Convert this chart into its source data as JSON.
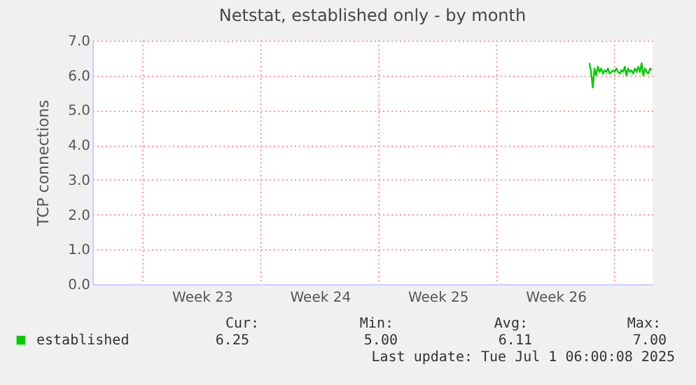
{
  "chart_data": {
    "type": "line",
    "title": "Netstat, established only - by month",
    "ylabel": "TCP connections",
    "x": [
      "2025-06-27T12:00",
      "2025-06-27T14:24",
      "2025-06-27T16:48",
      "2025-06-27T19:12",
      "2025-06-27T21:36",
      "2025-06-28T00:00",
      "2025-06-28T02:24",
      "2025-06-28T04:48",
      "2025-06-28T07:12",
      "2025-06-28T09:36",
      "2025-06-28T12:00",
      "2025-06-28T14:24",
      "2025-06-28T16:48",
      "2025-06-28T19:12",
      "2025-06-28T21:36",
      "2025-06-29T00:00",
      "2025-06-29T02:24",
      "2025-06-29T04:48",
      "2025-06-29T07:12",
      "2025-06-29T09:36",
      "2025-06-29T12:00",
      "2025-06-29T14:24",
      "2025-06-29T16:48",
      "2025-06-29T19:12",
      "2025-06-29T21:36",
      "2025-06-30T00:00",
      "2025-06-30T02:24",
      "2025-06-30T04:48",
      "2025-06-30T07:12",
      "2025-06-30T09:36",
      "2025-06-30T12:00",
      "2025-06-30T14:24",
      "2025-06-30T16:48",
      "2025-06-30T19:12",
      "2025-06-30T21:36",
      "2025-07-01T00:00",
      "2025-07-01T02:24",
      "2025-07-01T04:48"
    ],
    "series": [
      {
        "name": "established",
        "color": "#00cc00",
        "values": [
          6.35,
          6.1,
          5.65,
          6.2,
          6.0,
          6.25,
          6.1,
          6.2,
          6.05,
          6.15,
          6.1,
          6.2,
          6.05,
          6.1,
          6.15,
          6.1,
          6.2,
          6.1,
          6.05,
          6.15,
          6.1,
          6.25,
          6.0,
          6.2,
          6.1,
          6.15,
          6.05,
          6.2,
          6.1,
          6.25,
          6.1,
          6.35,
          6.0,
          6.2,
          6.1,
          6.05,
          6.2,
          6.15
        ]
      }
    ],
    "xlim": [
      "2025-05-29T00:00",
      "2025-07-01T06:00"
    ],
    "xticks": [
      {
        "value": "2025-06-01",
        "label": null
      },
      {
        "value": "2025-06-04T12:00",
        "label": "Week 23"
      },
      {
        "value": "2025-06-08",
        "label": null
      },
      {
        "value": "2025-06-11T12:00",
        "label": "Week 24"
      },
      {
        "value": "2025-06-15",
        "label": null
      },
      {
        "value": "2025-06-18T12:00",
        "label": "Week 25"
      },
      {
        "value": "2025-06-22",
        "label": null
      },
      {
        "value": "2025-06-25T12:00",
        "label": "Week 26"
      },
      {
        "value": "2025-06-29",
        "label": null
      }
    ],
    "ylim": [
      0,
      7
    ],
    "yticks": [
      {
        "value": 0,
        "label": "0.0"
      },
      {
        "value": 1,
        "label": "1.0"
      },
      {
        "value": 2,
        "label": "2.0"
      },
      {
        "value": 3,
        "label": "3.0"
      },
      {
        "value": 4,
        "label": "4.0"
      },
      {
        "value": 5,
        "label": "5.0"
      },
      {
        "value": 6,
        "label": "6.0"
      },
      {
        "value": 7,
        "label": "7.0"
      }
    ],
    "grid": true,
    "legend": "bottom",
    "marker": "none",
    "line_style": "solid",
    "annotations": [
      "Cur:",
      "6.25",
      "Min:",
      "5.00",
      "Avg:",
      "6.11",
      "Max:",
      "7.00",
      "Last update: Tue Jul  1 06:00:08 2025"
    ]
  }
}
